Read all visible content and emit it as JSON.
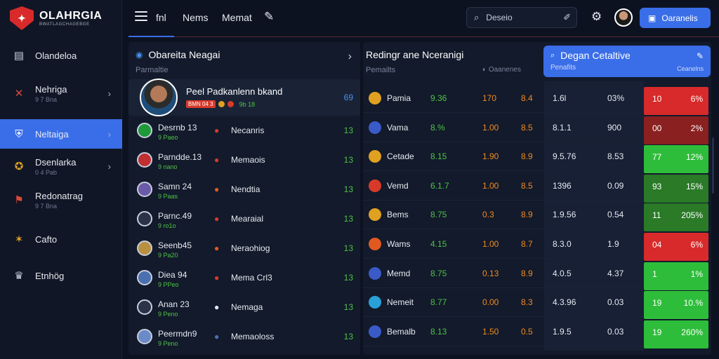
{
  "logo": {
    "title": "OLAHRGIA",
    "subtitle": "BWATLAGCHAGEBGE"
  },
  "topnav": {
    "links": [
      "fnl",
      "Nems",
      "Memat"
    ]
  },
  "search": {
    "value": "Deseio"
  },
  "cta_label": "Oaranelis",
  "sidebar": {
    "items": [
      {
        "label": "Olandeloa",
        "sub": "",
        "icon": "document-icon",
        "color": "#c7cddc",
        "chevron": false,
        "active": false
      },
      {
        "label": "Nehriga",
        "sub": "9 7 Bna",
        "icon": "crossed-swords-icon",
        "color": "#d84a3a",
        "chevron": true,
        "active": false
      },
      {
        "label": "Neltaiga",
        "sub": "",
        "icon": "shield-icon",
        "color": "#ffffff",
        "chevron": true,
        "active": true
      },
      {
        "label": "Dsenlarka",
        "sub": "0 4 Pab",
        "icon": "badge-icon",
        "color": "#e0a020",
        "chevron": true,
        "active": false
      },
      {
        "label": "Redonatrag",
        "sub": "9 7 Bna",
        "icon": "flag-icon",
        "color": "#d84a3a",
        "chevron": false,
        "active": false
      },
      {
        "label": "Cafto",
        "sub": "",
        "icon": "ball-icon",
        "color": "#e0a020",
        "chevron": false,
        "active": false
      },
      {
        "label": "Etnhög",
        "sub": "",
        "icon": "trophy-icon",
        "color": "#c7cddc",
        "chevron": false,
        "active": false
      }
    ]
  },
  "left_panel": {
    "title": "Obareita Neagai",
    "subtitle": "Parmaltie",
    "featured": {
      "title": "Peel Padkanlenn bkand",
      "badge": "BMN 04 3",
      "score_text": "9b 18",
      "count": "69"
    },
    "matches": [
      {
        "team": "Desrnb 13",
        "odds": "9 Paeo",
        "crest_color": "#1e9a3a",
        "opp": "Necanris",
        "opp_icon_color": "#d83a2a",
        "count": "13"
      },
      {
        "team": "Parndde.13",
        "odds": "9 nano",
        "crest_color": "#c03030",
        "opp": "Memaois",
        "opp_icon_color": "#d83a2a",
        "count": "13"
      },
      {
        "team": "Samn 24",
        "odds": "9 Paas",
        "crest_color": "#6a5aa8",
        "opp": "Nendtia",
        "opp_icon_color": "#e05a20",
        "count": "13"
      },
      {
        "team": "Parnc.49",
        "odds": "9 ro1o",
        "crest_color": "#2a3348",
        "opp": "Mearaial",
        "opp_icon_color": "#d83a2a",
        "count": "13"
      },
      {
        "team": "Seenb45",
        "odds": "9 Pa20",
        "crest_color": "#b89040",
        "opp": "Neraohiog",
        "opp_icon_color": "#e05a20",
        "count": "13"
      },
      {
        "team": "Diea 94",
        "odds": "9 PPeo",
        "crest_color": "#4a70b0",
        "opp": "Mema Crl3",
        "opp_icon_color": "#d83a2a",
        "count": "13"
      },
      {
        "team": "Anan 23",
        "odds": "9 Peno",
        "crest_color": "#2a3348",
        "opp": "Nemaga",
        "opp_icon_color": "#e6e9f0",
        "count": "13"
      },
      {
        "team": "Peermdn9",
        "odds": "9 Peno",
        "crest_color": "#6a8ac8",
        "opp": "Memaoloss",
        "opp_icon_color": "#4a70b0",
        "count": "13"
      }
    ]
  },
  "right_panel": {
    "title": "Redingr ane Nceranigi",
    "subtitle": "Pemailts",
    "subright": "Oaanenes",
    "highlight": {
      "title": "Degan Cetaltive",
      "subtitle": "Penafits",
      "right": "Ceanelns"
    },
    "rows": [
      {
        "name": "Pamia",
        "icon_color": "#e0a020",
        "c1": "9.36",
        "c2": "170",
        "c3": "8.4",
        "c4": "1.6l",
        "c5": "03%",
        "r1": "10",
        "r2": "6%",
        "result": "loss"
      },
      {
        "name": "Vama",
        "icon_color": "#3a5ac8",
        "c1": "8.%",
        "c2": "1.00",
        "c3": "8.5",
        "c4": "8.1.1",
        "c5": "900",
        "r1": "00",
        "r2": "2%",
        "result": "loss-dark"
      },
      {
        "name": "Cetade",
        "icon_color": "#e0a020",
        "c1": "8.15",
        "c2": "1.90",
        "c3": "8.9",
        "c4": "9.5.76",
        "c5": "8.53",
        "r1": "77",
        "r2": "12%",
        "result": "win"
      },
      {
        "name": "Vemd",
        "icon_color": "#d83a2a",
        "c1": "6.1.7",
        "c2": "1.00",
        "c3": "8.5",
        "c4": "1396",
        "c5": "0.09",
        "r1": "93",
        "r2": "15%",
        "result": "win-dark"
      },
      {
        "name": "Bems",
        "icon_color": "#e0a020",
        "c1": "8.75",
        "c2": "0.3",
        "c3": "8.9",
        "c4": "1.9.56",
        "c5": "0.54",
        "r1": "11",
        "r2": "205%",
        "result": "win-dark"
      },
      {
        "name": "Wams",
        "icon_color": "#e05a20",
        "c1": "4.15",
        "c2": "1.00",
        "c3": "8.7",
        "c4": "8.3.0",
        "c5": "1.9",
        "r1": "04",
        "r2": "6%",
        "result": "loss"
      },
      {
        "name": "Memd",
        "icon_color": "#3a5ac8",
        "c1": "8.75",
        "c2": "0.13",
        "c3": "8.9",
        "c4": "4.0.5",
        "c5": "4.37",
        "r1": "1",
        "r2": "1%",
        "result": "win"
      },
      {
        "name": "Nemeit",
        "icon_color": "#2aa0d8",
        "c1": "8.77",
        "c2": "0.00",
        "c3": "8.3",
        "c4": "4.3.96",
        "c5": "0.03",
        "r1": "19",
        "r2": "10.%",
        "result": "win"
      },
      {
        "name": "Bemalb",
        "icon_color": "#3a5ac8",
        "c1": "8.13",
        "c2": "1.50",
        "c3": "0.5",
        "c4": "1.9.5",
        "c5": "0.03",
        "r1": "19",
        "r2": "260%",
        "result": "win"
      }
    ]
  },
  "colors": {
    "accent": "#3a6ee8",
    "up": "#4fc245",
    "down": "#e03a3a",
    "orange": "#f08a20",
    "loss": "#d82a2a",
    "win": "#2ebd3a"
  }
}
